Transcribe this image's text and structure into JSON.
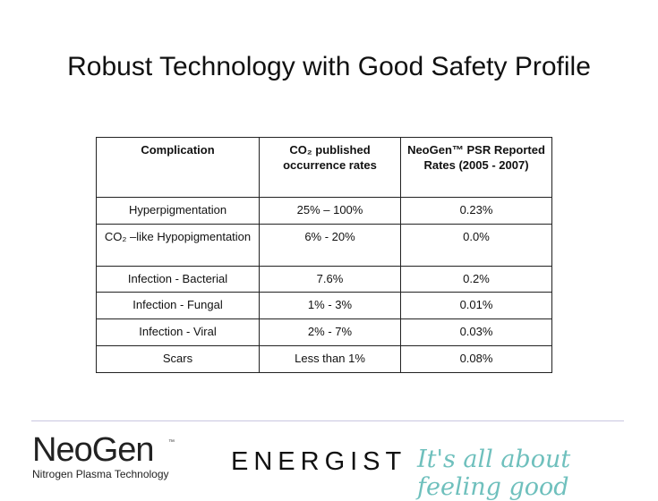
{
  "header": {
    "title": "Robust Technology with Good Safety Profile"
  },
  "table": {
    "columns": [
      "Complication",
      "CO₂ published occurrence rates",
      "NeoGen™  PSR Reported Rates (2005 - 2007)"
    ],
    "rows": [
      [
        "Hyperpigmentation",
        "25% – 100%",
        "0.23%"
      ],
      [
        "CO₂ –like Hypopigmentation",
        "6% - 20%",
        "0.0%"
      ],
      [
        "Infection - Bacterial",
        "7.6%",
        "0.2%"
      ],
      [
        "Infection - Fungal",
        "1% - 3%",
        "0.01%"
      ],
      [
        "Infection - Viral",
        "2% - 7%",
        "0.03%"
      ],
      [
        "Scars",
        "Less than 1%",
        "0.08%"
      ]
    ]
  },
  "footer": {
    "logo": "NeoGen",
    "logo_mark": "™",
    "logo_subtitle": "Nitrogen Plasma Technology",
    "brand": "ENERGIST",
    "tagline": "It's all about feeling good"
  }
}
